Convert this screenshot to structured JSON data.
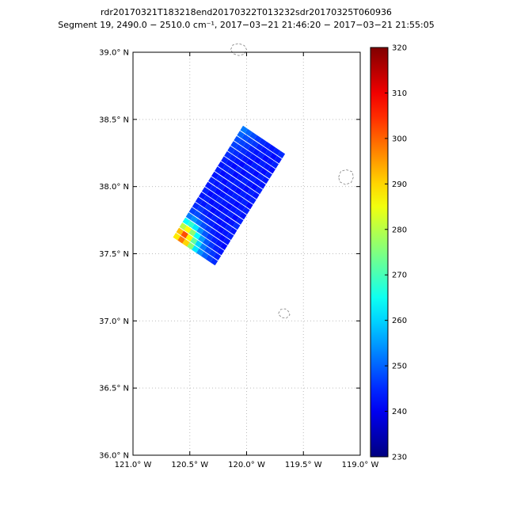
{
  "title": {
    "line1": "rdr20170321T183218end20170322T013232sdr20170325T060936",
    "line2": "Segment 19, 2490.0 − 2510.0 cm⁻¹, 2017−03−21 21:46:20 − 2017−03−21 21:55:05"
  },
  "colors": {
    "background": "#ffffff",
    "frame": "#000000",
    "grid": "#bdbdbd",
    "coastline": "#8f8f8f",
    "text": "#000000"
  },
  "chart_data": {
    "type": "heatmap",
    "title": "rdr20170321T183218end20170322T013232sdr20170325T060936",
    "subtitle": "Segment 19, 2490.0 − 2510.0 cm⁻¹, 2017−03−21 21:46:20 − 2017−03−21 21:55:05",
    "xlabel": "",
    "ylabel": "",
    "grid": "dotted",
    "legend_position": "colorbar-right",
    "x_range_degW": [
      121.0,
      119.0
    ],
    "y_range_degN": [
      36.0,
      39.0
    ],
    "x_ticks": {
      "values": [
        121.0,
        120.5,
        120.0,
        119.5,
        119.0
      ],
      "labels": [
        "121.0° W",
        "120.5° W",
        "120.0° W",
        "119.5° W",
        "119.0° W"
      ]
    },
    "y_ticks": {
      "values": [
        36.0,
        36.5,
        37.0,
        37.5,
        38.0,
        38.5,
        39.0
      ],
      "labels": [
        "36.0° N",
        "36.5° N",
        "37.0° N",
        "37.5° N",
        "38.0° N",
        "38.5° N",
        "39.0° N"
      ]
    },
    "colorbar": {
      "min": 230,
      "max": 320,
      "ticks": [
        230,
        240,
        250,
        260,
        270,
        280,
        290,
        300,
        310,
        320
      ],
      "colormap": "jet"
    },
    "swath": {
      "origin_degW_degN": [
        120.65,
        37.62
      ],
      "along_track_vec": [
        -0.62,
        0.835
      ],
      "cross_track_vec": [
        -0.37,
        -0.21
      ],
      "rows": 22,
      "cols": 9,
      "values": [
        [
          288,
          298,
          290,
          276,
          262,
          254,
          250,
          247,
          245
        ],
        [
          292,
          302,
          287,
          272,
          260,
          252,
          248,
          246,
          244
        ],
        [
          280,
          286,
          276,
          264,
          255,
          249,
          246,
          244,
          243
        ],
        [
          264,
          268,
          262,
          254,
          249,
          246,
          244,
          243,
          242
        ],
        [
          252,
          254,
          251,
          248,
          246,
          244,
          243,
          242,
          243
        ],
        [
          247,
          248,
          246,
          245,
          244,
          243,
          242,
          243,
          244
        ],
        [
          245,
          246,
          244,
          243,
          244,
          242,
          243,
          244,
          243
        ],
        [
          244,
          243,
          245,
          242,
          243,
          244,
          242,
          243,
          245
        ],
        [
          243,
          244,
          242,
          243,
          242,
          243,
          244,
          242,
          244
        ],
        [
          244,
          242,
          243,
          244,
          243,
          242,
          243,
          244,
          243
        ],
        [
          243,
          244,
          242,
          243,
          244,
          243,
          242,
          243,
          244
        ],
        [
          244,
          243,
          244,
          242,
          243,
          244,
          243,
          244,
          242
        ],
        [
          243,
          244,
          242,
          244,
          243,
          242,
          244,
          243,
          244
        ],
        [
          244,
          242,
          243,
          243,
          244,
          243,
          242,
          244,
          243
        ],
        [
          243,
          244,
          244,
          242,
          243,
          244,
          243,
          242,
          244
        ],
        [
          244,
          243,
          242,
          244,
          242,
          243,
          244,
          243,
          243
        ],
        [
          245,
          244,
          243,
          242,
          244,
          243,
          242,
          244,
          243
        ],
        [
          246,
          245,
          244,
          243,
          242,
          244,
          243,
          242,
          244
        ],
        [
          247,
          246,
          245,
          244,
          243,
          242,
          244,
          243,
          242
        ],
        [
          248,
          247,
          246,
          244,
          243,
          244,
          242,
          243,
          244
        ],
        [
          250,
          248,
          247,
          246,
          244,
          243,
          244,
          242,
          243
        ],
        [
          252,
          250,
          248,
          246,
          245,
          244,
          243,
          244,
          245
        ]
      ]
    },
    "map_outlines": [
      {
        "name": "lake-outline-north",
        "points_degW_degN": [
          [
            120.14,
            39.02
          ],
          [
            120.12,
            39.055
          ],
          [
            120.07,
            39.065
          ],
          [
            120.02,
            39.05
          ],
          [
            120.0,
            39.02
          ],
          [
            120.02,
            38.985
          ],
          [
            120.07,
            38.975
          ],
          [
            120.12,
            38.99
          ]
        ]
      },
      {
        "name": "lake-outline-east",
        "points_degW_degN": [
          [
            119.19,
            38.07
          ],
          [
            119.17,
            38.115
          ],
          [
            119.12,
            38.125
          ],
          [
            119.07,
            38.11
          ],
          [
            119.06,
            38.07
          ],
          [
            119.08,
            38.03
          ],
          [
            119.13,
            38.015
          ],
          [
            119.18,
            38.035
          ]
        ]
      },
      {
        "name": "lake-outline-central",
        "points_degW_degN": [
          [
            119.72,
            37.055
          ],
          [
            119.7,
            37.085
          ],
          [
            119.66,
            37.09
          ],
          [
            119.63,
            37.07
          ],
          [
            119.62,
            37.045
          ],
          [
            119.65,
            37.02
          ],
          [
            119.69,
            37.025
          ],
          [
            119.71,
            37.04
          ]
        ]
      }
    ]
  }
}
